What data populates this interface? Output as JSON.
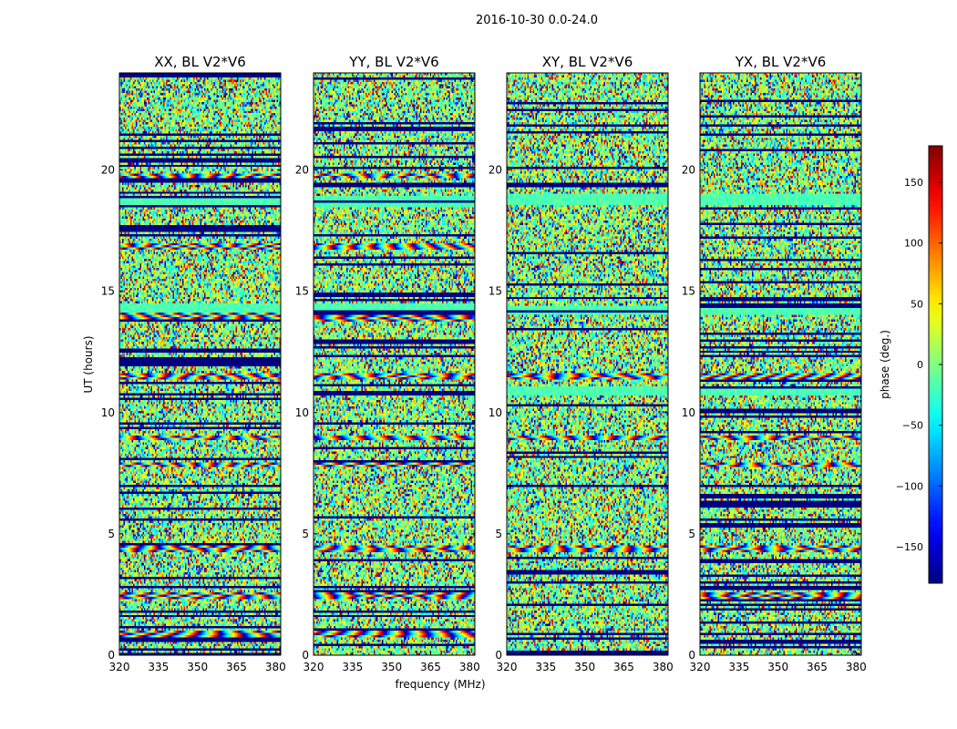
{
  "suptitle": "2016-10-30 0.0-24.0",
  "chart_data": {
    "type": "heatmap",
    "description_of_values": "phase (degrees) vs frequency and UT",
    "panels": [
      {
        "title": "XX, BL V2*V6",
        "strong_rows": [
          0.9,
          2.45,
          4.35,
          7.85,
          8.95,
          11.5,
          13.95,
          16.85,
          19.75
        ],
        "calm_rows": [
          14.3,
          18.7
        ]
      },
      {
        "title": "YY, BL V2*V6",
        "strong_rows": [
          0.9,
          2.45,
          4.35,
          7.85,
          8.95,
          11.5,
          13.9,
          16.85,
          19.75
        ],
        "calm_rows": [
          14.3,
          18.7
        ]
      },
      {
        "title": "XY, BL V2*V6",
        "strong_rows": [
          4.4,
          8.95,
          11.5
        ],
        "calm_rows": [
          10.9,
          14.2,
          18.8
        ]
      },
      {
        "title": "YX, BL V2*V6",
        "strong_rows": [
          2.45,
          4.4,
          7.85,
          8.95,
          11.5
        ],
        "calm_rows": [
          10.9,
          14.2,
          18.8
        ]
      }
    ],
    "xlabel": "frequency (MHz)",
    "ylabel": "UT (hours)",
    "xlim": [
      320,
      382
    ],
    "ylim": [
      0,
      24
    ],
    "xticks": [
      320,
      335,
      350,
      365,
      380
    ],
    "xtick_labels": [
      "320",
      "335",
      "350",
      "365",
      "380"
    ],
    "yticks": [
      0,
      5,
      10,
      15,
      20
    ],
    "ytick_labels": [
      "0",
      "5",
      "10",
      "15",
      "20"
    ],
    "colorbar": {
      "label": "phase (deg.)",
      "range": [
        -180,
        180
      ],
      "ticks": [
        150,
        100,
        50,
        0,
        -50,
        -100,
        -150
      ],
      "tick_labels": [
        "150",
        "100",
        "50",
        "0",
        "−50",
        "−100",
        "−150"
      ],
      "colormap": "jet"
    },
    "flagged_color": "#000080",
    "grid": false
  }
}
